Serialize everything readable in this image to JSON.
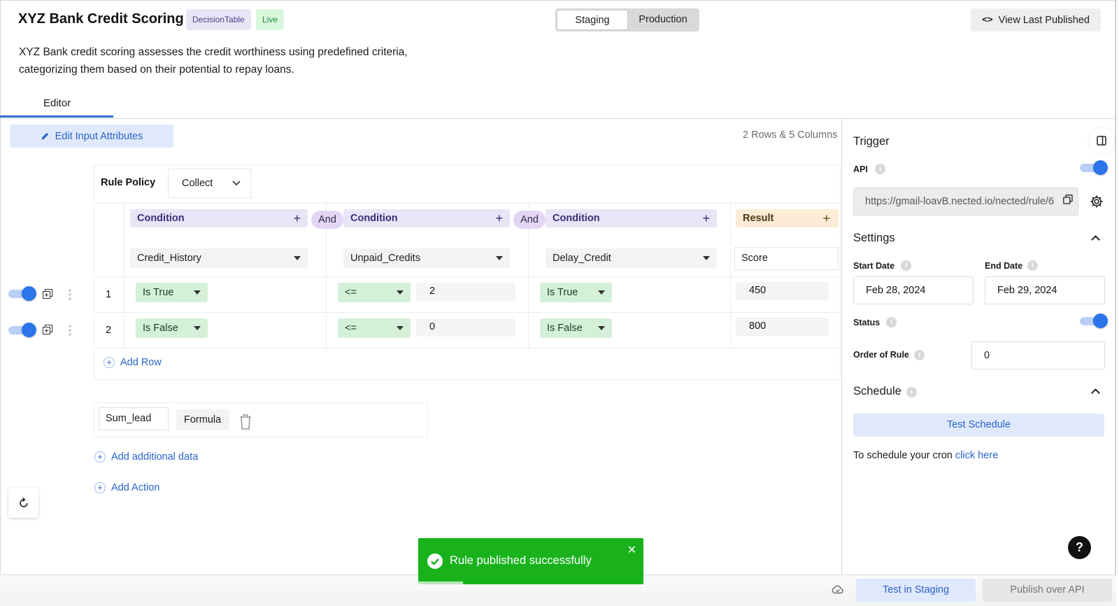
{
  "header": {
    "title": "XYZ Bank Credit Scoring",
    "type_badge": "DecisionTable",
    "status_badge": "Live",
    "env_tabs": [
      "Staging",
      "Production"
    ],
    "active_env": "Staging",
    "view_last_published": "View Last Published",
    "description_line1": "XYZ Bank credit scoring assesses the credit worthiness using predefined criteria,",
    "description_line2": "categorizing them based on their potential to repay loans."
  },
  "tabs": {
    "editor": "Editor"
  },
  "editor": {
    "edit_input_attributes": "Edit Input Attributes",
    "rows_columns": "2 Rows & 5 Columns",
    "rule_policy_label": "Rule Policy",
    "rule_policy_value": "Collect",
    "columns": [
      {
        "header": "Condition",
        "attribute": "Credit_History"
      },
      {
        "header": "Condition",
        "attribute": "Unpaid_Credits"
      },
      {
        "header": "Condition",
        "attribute": "Delay_Credit"
      }
    ],
    "connector": "And",
    "result_header": "Result",
    "result_attribute": "Score",
    "rows": [
      {
        "num": "1",
        "c1_op": "Is True",
        "c2_op": "<=",
        "c2_val": "2",
        "c3_op": "Is True",
        "result": "450",
        "enabled": true
      },
      {
        "num": "2",
        "c1_op": "Is False",
        "c2_op": "<=",
        "c2_val": "0",
        "c3_op": "Is False",
        "result": "800",
        "enabled": true
      }
    ],
    "add_row": "Add Row",
    "additional_data": {
      "name": "Sum_lead",
      "type": "Formula"
    },
    "add_additional_data": "Add additional data",
    "add_action": "Add Action"
  },
  "right_panel": {
    "trigger_title": "Trigger",
    "api_label": "API",
    "api_enabled": true,
    "api_url": "https://gmail-loavB.nected.io/nected/rule/6",
    "settings_title": "Settings",
    "start_date_label": "Start Date",
    "start_date": "Feb 28, 2024",
    "end_date_label": "End Date",
    "end_date": "Feb 29, 2024",
    "status_label": "Status",
    "status_enabled": true,
    "order_label": "Order of Rule",
    "order_value": "0",
    "schedule_title": "Schedule",
    "test_schedule": "Test Schedule",
    "cron_text": "To schedule your cron",
    "cron_link": "click here"
  },
  "toast": {
    "message": "Rule published successfully"
  },
  "footer": {
    "test_in_staging": "Test in Staging",
    "publish_over_api": "Publish over API"
  },
  "colors": {
    "accent_blue": "#2b75e8",
    "condition_purple": "#e9e4f6",
    "result_orange": "#fcecd6",
    "operator_green": "#d5f0d9",
    "toast_green": "#19b21c"
  }
}
